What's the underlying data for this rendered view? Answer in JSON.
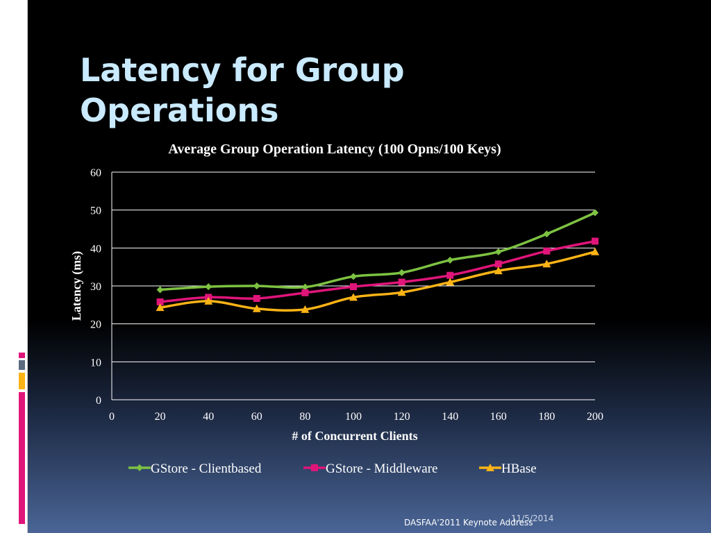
{
  "slide": {
    "title": "Latency for Group Operations",
    "footer_date": "11/5/2014",
    "footer_text": "DASFAA'2011 Keynote Address"
  },
  "chart_data": {
    "type": "line",
    "title": "Average Group  Operation Latency (100 Opns/100 Keys)",
    "xlabel": "# of Concurrent Clients",
    "ylabel": "Latency (ms)",
    "xlim": [
      0,
      200
    ],
    "ylim": [
      0,
      60
    ],
    "x_ticks": [
      0,
      20,
      40,
      60,
      80,
      100,
      120,
      140,
      160,
      180,
      200
    ],
    "y_ticks": [
      0,
      10,
      20,
      30,
      40,
      50,
      60
    ],
    "grid": true,
    "legend": "bottom",
    "x": [
      20,
      40,
      60,
      80,
      100,
      120,
      140,
      160,
      180,
      200
    ],
    "series": [
      {
        "name": "GStore - Clientbased",
        "color": "#7dc242",
        "marker": "diamond",
        "values": [
          29.0,
          29.8,
          30.0,
          29.7,
          32.5,
          33.5,
          36.8,
          39.0,
          43.7,
          49.3
        ]
      },
      {
        "name": "GStore - Middleware",
        "color": "#e0157a",
        "marker": "square",
        "values": [
          25.8,
          27.0,
          26.7,
          28.2,
          29.8,
          31.0,
          32.8,
          35.8,
          39.2,
          41.8
        ]
      },
      {
        "name": "HBase",
        "color": "#fcb316",
        "marker": "triangle",
        "values": [
          24.3,
          26.0,
          24.0,
          23.8,
          27.0,
          28.3,
          31.0,
          34.0,
          35.8,
          39.0
        ]
      }
    ]
  }
}
